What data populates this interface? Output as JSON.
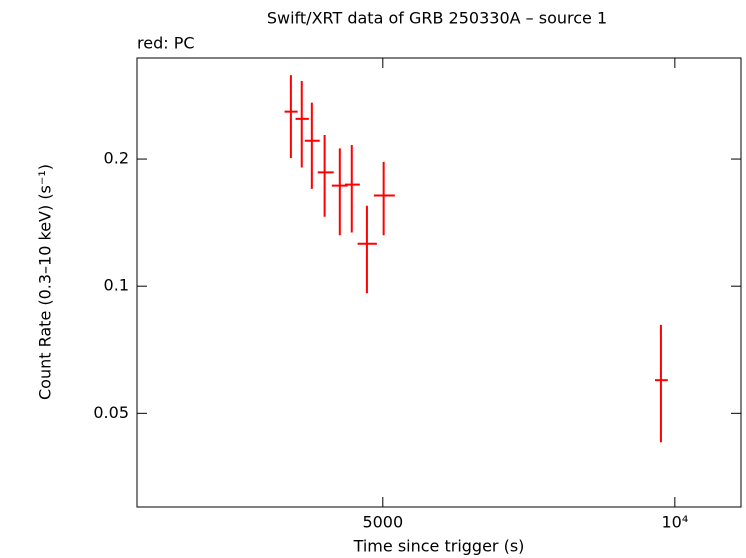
{
  "chart_data": {
    "type": "errorbar",
    "title": "Swift/XRT data of GRB 250330A – source 1",
    "subtitle": "red: PC",
    "x_label": "Time since trigger (s)",
    "y_label": "Count Rate (0.3–10 keV) (s⁻¹)",
    "log_x": true,
    "log_y": true,
    "xlim": [
      2790,
      11700
    ],
    "ylim": [
      0.03,
      0.347
    ],
    "xticks": [
      5000,
      {
        "value": 10000,
        "label": "10⁴"
      }
    ],
    "yticks": [
      0.05,
      0.1,
      0.2
    ],
    "series": [
      {
        "name": "PC",
        "color": "#ff0000",
        "x": [
          4020,
          4125,
          4225,
          4355,
          4515,
          4645,
          4815,
          5010,
          9675
        ],
        "xlo": [
          3960,
          4065,
          4155,
          4285,
          4430,
          4570,
          4710,
          4895,
          9540
        ],
        "xhi": [
          4085,
          4195,
          4305,
          4450,
          4600,
          4735,
          4930,
          5145,
          9835
        ],
        "values": [
          0.259,
          0.249,
          0.221,
          0.186,
          0.173,
          0.174,
          0.126,
          0.164,
          0.0599
        ],
        "ylo": [
          0.201,
          0.191,
          0.17,
          0.146,
          0.132,
          0.134,
          0.0962,
          0.132,
          0.0427
        ],
        "yhi": [
          0.316,
          0.306,
          0.272,
          0.228,
          0.212,
          0.216,
          0.155,
          0.197,
          0.081
        ]
      }
    ]
  }
}
